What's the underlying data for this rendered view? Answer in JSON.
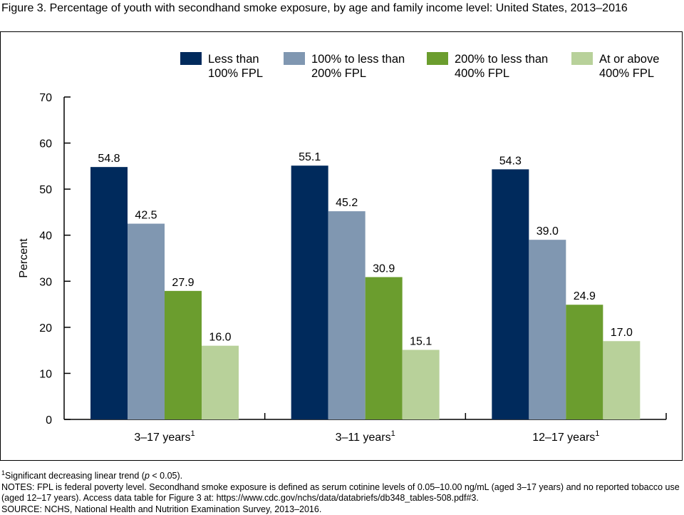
{
  "title": "Figure 3. Percentage of youth with secondhand smoke exposure, by age and family income level: United States, 2013–2016",
  "chart_data": {
    "type": "bar",
    "categories": [
      "3–17 years",
      "3–11 years",
      "12–17 years"
    ],
    "category_superscript": "1",
    "ylabel": "Percent",
    "xlabel": "",
    "ylim": [
      0,
      70
    ],
    "yticks": [
      0,
      10,
      20,
      30,
      40,
      50,
      60,
      70
    ],
    "grid": false,
    "legend_position": "top-right",
    "series": [
      {
        "name": "Less than 100% FPL",
        "label_lines": [
          "Less than",
          "100% FPL"
        ],
        "color": "#002a5c",
        "values": [
          54.8,
          55.1,
          54.3
        ],
        "labels": [
          "54.8",
          "55.1",
          "54.3"
        ]
      },
      {
        "name": "100% to less than 200% FPL",
        "label_lines": [
          "100% to less than",
          "200% FPL"
        ],
        "color": "#8097b1",
        "values": [
          42.5,
          45.2,
          39.0
        ],
        "labels": [
          "42.5",
          "45.2",
          "39.0"
        ]
      },
      {
        "name": "200% to less than 400% FPL",
        "label_lines": [
          "200% to less than",
          "400% FPL"
        ],
        "color": "#6b9d2e",
        "values": [
          27.9,
          30.9,
          24.9
        ],
        "labels": [
          "27.9",
          "30.9",
          "24.9"
        ]
      },
      {
        "name": "At or above 400% FPL",
        "label_lines": [
          "At or above",
          "400% FPL"
        ],
        "color": "#b8d19a",
        "values": [
          16.0,
          15.1,
          17.0
        ],
        "labels": [
          "16.0",
          "15.1",
          "17.0"
        ]
      }
    ]
  },
  "notes": {
    "footnote_superscript": "1",
    "footnote_text_before": "Significant decreasing linear trend (",
    "footnote_italic": "p",
    "footnote_text_after": " < 0.05).",
    "notes_text": "NOTES: FPL is federal poverty level. Secondhand smoke exposure is defined as serum cotinine levels of 0.05–10.00 ng/mL (aged 3–17 years) and no reported tobacco use (aged 12–17 years). Access data table for Figure 3 at: https://www.cdc.gov/nchs/data/databriefs/db348_tables-508.pdf#3.",
    "source_text": "SOURCE: NCHS, National Health and Nutrition Examination Survey, 2013–2016."
  }
}
